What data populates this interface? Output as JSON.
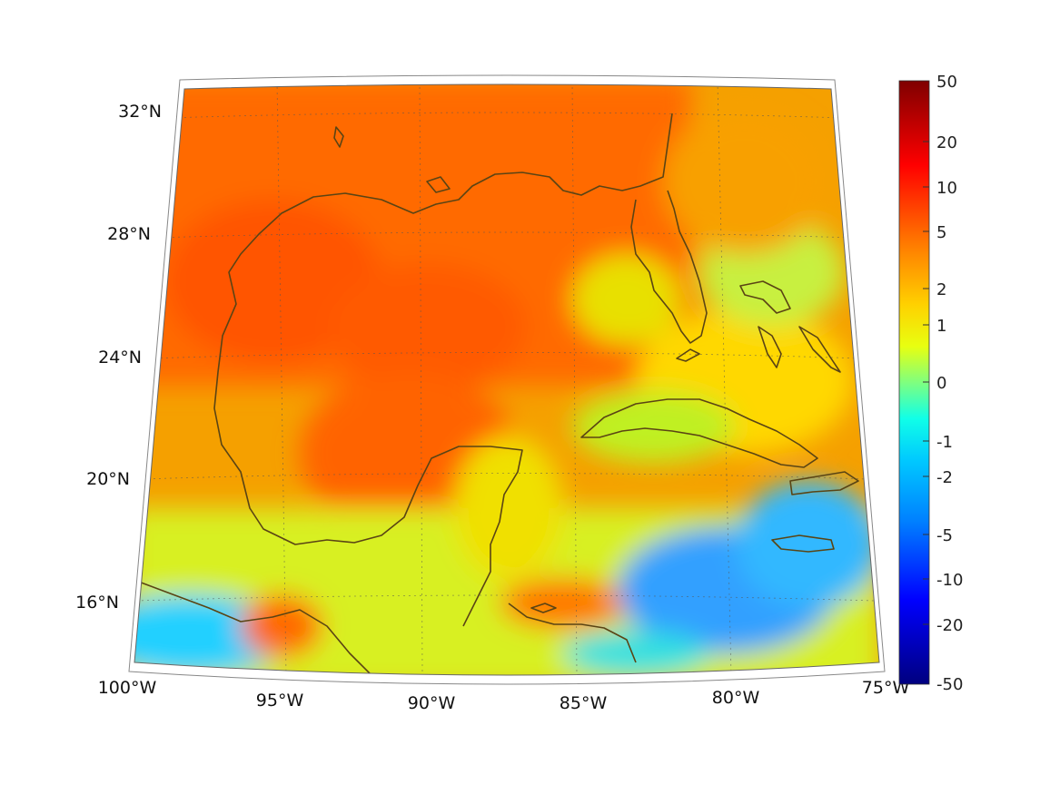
{
  "map": {
    "projection": "conic",
    "lon_range": [
      -100,
      -75
    ],
    "lat_range": [
      14,
      33
    ],
    "lat_ticks": [
      {
        "value": 32,
        "label": "32°N"
      },
      {
        "value": 28,
        "label": "28°N"
      },
      {
        "value": 24,
        "label": "24°N"
      },
      {
        "value": 20,
        "label": "20°N"
      },
      {
        "value": 16,
        "label": "16°N"
      }
    ],
    "lon_ticks": [
      {
        "value": -100,
        "label": "100°W"
      },
      {
        "value": -95,
        "label": "95°W"
      },
      {
        "value": -90,
        "label": "90°W"
      },
      {
        "value": -85,
        "label": "85°W"
      },
      {
        "value": -80,
        "label": "80°W"
      },
      {
        "value": -75,
        "label": "75°W"
      }
    ],
    "coastline_color": "#5a4414",
    "colormap": "jet"
  },
  "colorbar": {
    "scale": "symmetric-log",
    "range": [
      -50,
      50
    ],
    "ticks": [
      "50",
      "20",
      "10",
      "5",
      "2",
      "1",
      "0",
      "-1",
      "-2",
      "-5",
      "-10",
      "-20",
      "-50"
    ]
  }
}
